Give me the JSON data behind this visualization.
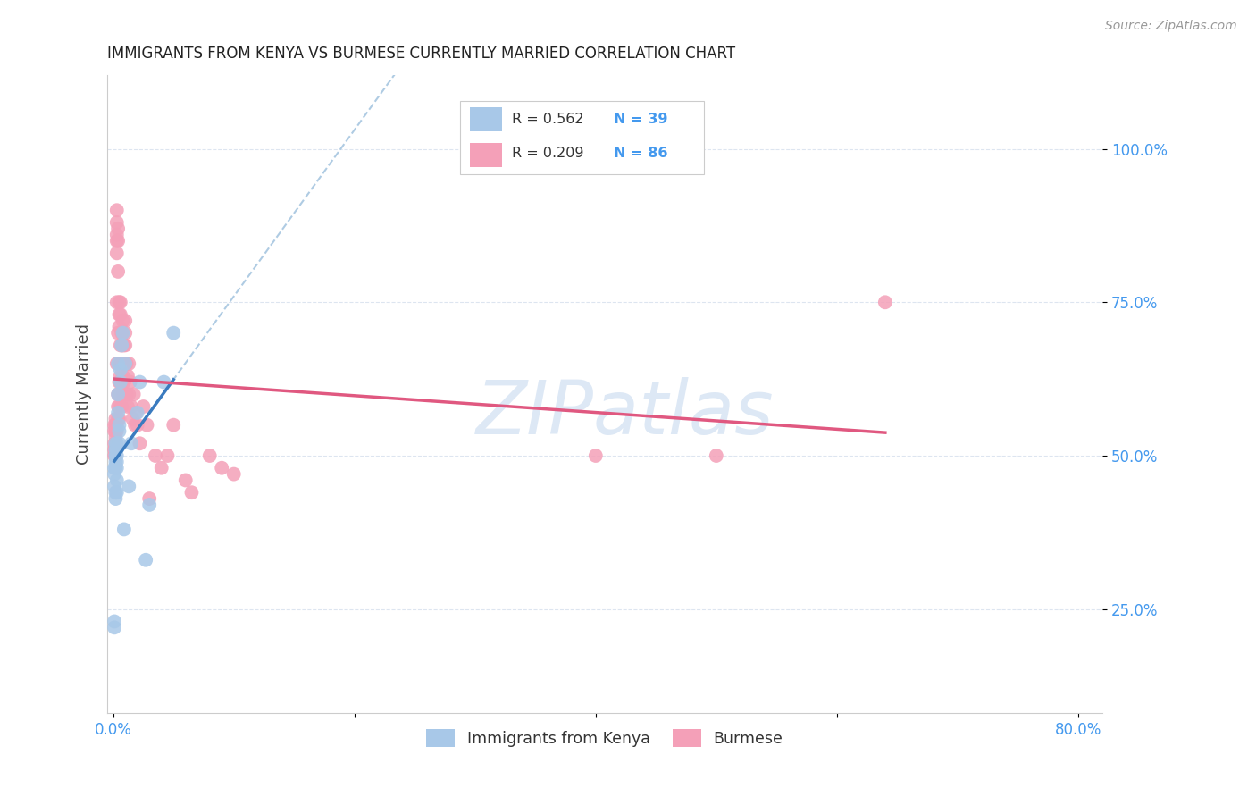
{
  "title": "IMMIGRANTS FROM KENYA VS BURMESE CURRENTLY MARRIED CORRELATION CHART",
  "source": "Source: ZipAtlas.com",
  "ylabel": "Currently Married",
  "xlim": [
    -0.005,
    0.82
  ],
  "ylim": [
    0.08,
    1.12
  ],
  "x_ticks": [
    0.0,
    0.2,
    0.4,
    0.6,
    0.8
  ],
  "x_tick_labels": [
    "0.0%",
    "",
    "",
    "",
    "80.0%"
  ],
  "y_ticks": [
    0.25,
    0.5,
    0.75,
    1.0
  ],
  "y_tick_labels": [
    "25.0%",
    "50.0%",
    "75.0%",
    "100.0%"
  ],
  "r_kenya": 0.562,
  "n_kenya": 39,
  "r_burmese": 0.209,
  "n_burmese": 86,
  "legend_label1": "Immigrants from Kenya",
  "legend_label2": "Burmese",
  "blue_scatter_color": "#a8c8e8",
  "pink_scatter_color": "#f4a0b8",
  "blue_line_color": "#3a7bbf",
  "pink_line_color": "#e05880",
  "dashed_line_color": "#9bbfdc",
  "watermark_color": "#dde8f5",
  "grid_color": "#dde5f0",
  "tick_color": "#4499ee",
  "kenya_x": [
    0.001,
    0.001,
    0.001,
    0.001,
    0.001,
    0.002,
    0.002,
    0.002,
    0.002,
    0.002,
    0.002,
    0.002,
    0.003,
    0.003,
    0.003,
    0.003,
    0.003,
    0.003,
    0.003,
    0.004,
    0.004,
    0.004,
    0.005,
    0.005,
    0.005,
    0.006,
    0.006,
    0.007,
    0.008,
    0.009,
    0.01,
    0.013,
    0.015,
    0.02,
    0.022,
    0.027,
    0.03,
    0.042,
    0.05
  ],
  "kenya_y": [
    0.22,
    0.23,
    0.45,
    0.47,
    0.48,
    0.48,
    0.49,
    0.5,
    0.51,
    0.52,
    0.43,
    0.44,
    0.48,
    0.49,
    0.5,
    0.51,
    0.52,
    0.44,
    0.46,
    0.57,
    0.6,
    0.65,
    0.52,
    0.54,
    0.55,
    0.62,
    0.64,
    0.68,
    0.7,
    0.38,
    0.65,
    0.45,
    0.52,
    0.57,
    0.62,
    0.33,
    0.42,
    0.62,
    0.7
  ],
  "burmese_x": [
    0.001,
    0.001,
    0.001,
    0.001,
    0.001,
    0.002,
    0.002,
    0.002,
    0.002,
    0.002,
    0.002,
    0.003,
    0.003,
    0.003,
    0.003,
    0.003,
    0.003,
    0.003,
    0.003,
    0.003,
    0.004,
    0.004,
    0.004,
    0.004,
    0.004,
    0.004,
    0.004,
    0.005,
    0.005,
    0.005,
    0.005,
    0.005,
    0.005,
    0.005,
    0.006,
    0.006,
    0.006,
    0.006,
    0.006,
    0.006,
    0.006,
    0.007,
    0.007,
    0.007,
    0.007,
    0.007,
    0.008,
    0.008,
    0.008,
    0.008,
    0.008,
    0.009,
    0.009,
    0.009,
    0.01,
    0.01,
    0.01,
    0.011,
    0.011,
    0.012,
    0.012,
    0.013,
    0.013,
    0.014,
    0.015,
    0.016,
    0.017,
    0.018,
    0.019,
    0.02,
    0.022,
    0.025,
    0.028,
    0.03,
    0.035,
    0.04,
    0.045,
    0.05,
    0.06,
    0.065,
    0.08,
    0.09,
    0.1,
    0.4,
    0.5,
    0.64
  ],
  "burmese_y": [
    0.55,
    0.54,
    0.52,
    0.51,
    0.5,
    0.55,
    0.54,
    0.53,
    0.51,
    0.5,
    0.56,
    0.55,
    0.54,
    0.85,
    0.83,
    0.88,
    0.86,
    0.9,
    0.65,
    0.75,
    0.6,
    0.58,
    0.56,
    0.87,
    0.85,
    0.8,
    0.7,
    0.62,
    0.6,
    0.58,
    0.56,
    0.75,
    0.73,
    0.71,
    0.65,
    0.63,
    0.75,
    0.73,
    0.68,
    0.65,
    0.62,
    0.7,
    0.68,
    0.65,
    0.62,
    0.58,
    0.72,
    0.7,
    0.68,
    0.63,
    0.6,
    0.68,
    0.65,
    0.62,
    0.72,
    0.7,
    0.68,
    0.65,
    0.6,
    0.63,
    0.58,
    0.65,
    0.6,
    0.62,
    0.58,
    0.56,
    0.6,
    0.55,
    0.57,
    0.55,
    0.52,
    0.58,
    0.55,
    0.43,
    0.5,
    0.48,
    0.5,
    0.55,
    0.46,
    0.44,
    0.5,
    0.48,
    0.47,
    0.5,
    0.5,
    0.75
  ]
}
